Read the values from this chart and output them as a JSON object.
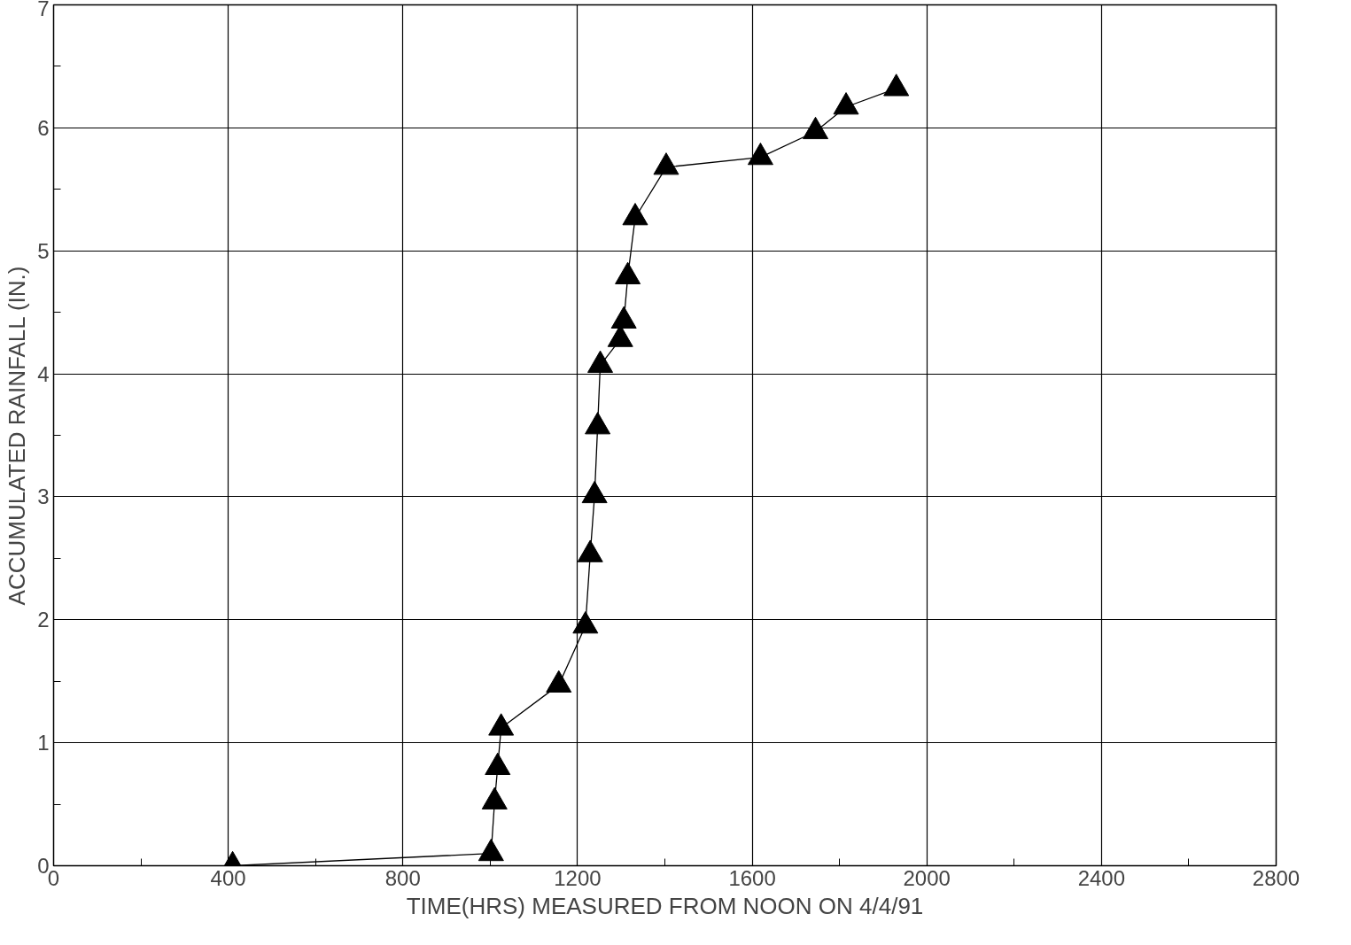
{
  "chart_data": {
    "type": "line",
    "xlabel": "TIME(HRS) MEASURED FROM NOON ON 4/4/91",
    "ylabel": "ACCUMULATED RAINFALL (IN.)",
    "xlim": [
      0,
      2800
    ],
    "xticks": [
      0,
      400,
      800,
      1200,
      1600,
      2000,
      2400,
      2800
    ],
    "ylim": [
      0,
      7
    ],
    "yticks": [
      0,
      1,
      2,
      3,
      4,
      5,
      6,
      7
    ],
    "grid": true,
    "marker": "triangle",
    "line_style": "solid",
    "series": [
      {
        "color": "#000000",
        "x": [
          410,
          1002,
          1010,
          1017,
          1025,
          1157,
          1218,
          1229,
          1239,
          1246,
          1252,
          1298,
          1306,
          1315,
          1332,
          1403,
          1619,
          1745,
          1815,
          1930
        ],
        "values": [
          0,
          0.1,
          0.52,
          0.8,
          1.12,
          1.47,
          1.95,
          2.53,
          3.01,
          3.57,
          4.07,
          4.28,
          4.43,
          4.79,
          5.27,
          5.68,
          5.76,
          5.97,
          6.17,
          6.32
        ]
      }
    ]
  }
}
